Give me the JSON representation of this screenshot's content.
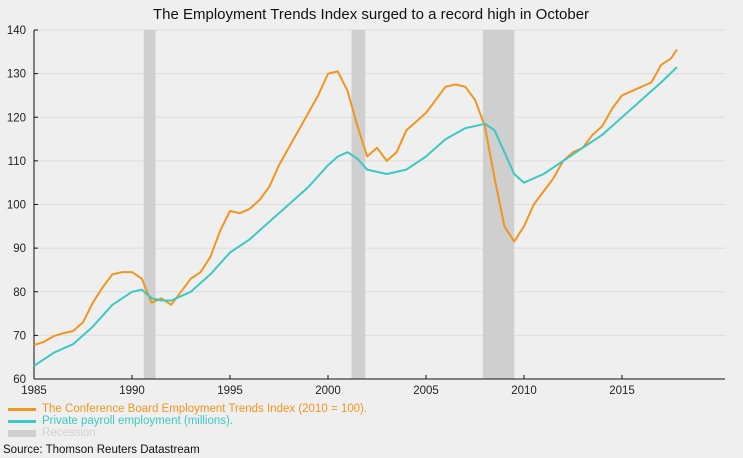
{
  "chart_data": {
    "type": "line",
    "title": "The Employment Trends Index surged to a record high in October",
    "xlabel": "",
    "ylabel": "",
    "xlim": [
      1985,
      2018.3
    ],
    "ylim": [
      60,
      140
    ],
    "x_ticks": [
      1985,
      1990,
      1995,
      2000,
      2005,
      2010,
      2015
    ],
    "y_ticks": [
      60,
      70,
      80,
      90,
      100,
      110,
      120,
      130,
      140
    ],
    "grid": "horizontal",
    "legend_position": "bottom-left",
    "recessions": [
      [
        1990.6,
        1991.2
      ],
      [
        2001.2,
        2001.9
      ],
      [
        2007.9,
        2009.5
      ]
    ],
    "recession_label": "Recession",
    "colors": {
      "eti": "#f0961e",
      "payroll": "#3cc8c3",
      "recession": "#cfcfcf"
    },
    "series": [
      {
        "name": "The Conference Board Employment Trends Index (2010 = 100).",
        "key": "eti",
        "x": [
          1985,
          1985.5,
          1986,
          1986.5,
          1987,
          1987.5,
          1988,
          1988.5,
          1989,
          1989.5,
          1990,
          1990.5,
          1991,
          1991.5,
          1992,
          1992.5,
          1993,
          1993.5,
          1994,
          1994.5,
          1995,
          1995.5,
          1996,
          1996.5,
          1997,
          1997.5,
          1998,
          1998.5,
          1999,
          1999.5,
          2000,
          2000.5,
          2001,
          2001.5,
          2002,
          2002.5,
          2003,
          2003.5,
          2004,
          2004.5,
          2005,
          2005.5,
          2006,
          2006.5,
          2007,
          2007.5,
          2008,
          2008.5,
          2009,
          2009.5,
          2010,
          2010.5,
          2011,
          2011.5,
          2012,
          2012.5,
          2013,
          2013.5,
          2014,
          2014.5,
          2015,
          2015.5,
          2016,
          2016.5,
          2017,
          2017.5,
          2017.8
        ],
        "y": [
          67.8,
          68.5,
          69.8,
          70.5,
          71,
          73,
          77.5,
          81,
          84,
          84.5,
          84.5,
          83,
          77.5,
          78.5,
          77,
          80,
          83,
          84.5,
          88,
          94,
          98.5,
          98,
          99,
          101,
          104,
          109,
          113,
          117,
          121,
          125,
          130,
          130.5,
          126,
          118,
          111,
          113,
          110,
          112,
          117,
          119,
          121,
          124,
          127,
          127.5,
          127,
          124,
          118,
          106,
          95,
          91.5,
          95,
          100,
          103,
          106,
          110,
          112,
          113,
          116,
          118,
          122,
          125,
          126,
          127,
          128,
          132,
          133.5,
          135.5
        ]
      },
      {
        "name": "Private payroll employment (millions).",
        "key": "payroll",
        "x": [
          1985,
          1986,
          1987,
          1988,
          1989,
          1990,
          1990.5,
          1991,
          1991.5,
          1992,
          1993,
          1994,
          1995,
          1996,
          1997,
          1998,
          1999,
          2000,
          2000.5,
          2001,
          2001.5,
          2002,
          2003,
          2004,
          2005,
          2006,
          2007,
          2008,
          2008.5,
          2009,
          2009.5,
          2010,
          2011,
          2012,
          2013,
          2014,
          2015,
          2016,
          2017,
          2017.8
        ],
        "y": [
          63,
          66,
          68,
          72,
          77,
          80,
          80.5,
          78.5,
          78,
          78,
          80,
          84,
          89,
          92,
          96,
          100,
          104,
          109,
          111,
          112,
          110.5,
          108,
          107,
          108,
          111,
          115,
          117.5,
          118.5,
          117,
          112,
          107,
          105,
          107,
          110,
          113,
          116,
          120,
          124,
          128,
          131.5
        ]
      }
    ]
  },
  "source": "Source: Thomson Reuters Datastream"
}
